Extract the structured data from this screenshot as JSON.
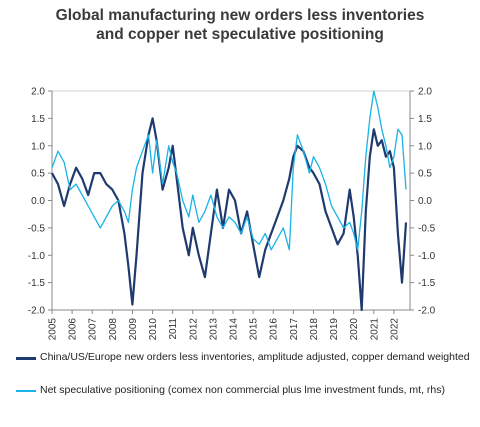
{
  "title_line1": "Global manufacturing new orders less inventories",
  "title_line2": "and copper net speculative positioning",
  "chart_data": {
    "type": "line",
    "title": "Global manufacturing new orders less inventories and copper net speculative positioning",
    "x_tick_labels": [
      "2005",
      "2006",
      "2007",
      "2008",
      "2009",
      "2010",
      "2011",
      "2012",
      "2013",
      "2014",
      "2015",
      "2016",
      "2017",
      "2018",
      "2019",
      "2020",
      "2021",
      "2022"
    ],
    "xlim": [
      2005,
      2022.8
    ],
    "left_axis": {
      "ylim": [
        -2.0,
        2.0
      ],
      "ticks": [
        "2.0",
        "1.5",
        "1.0",
        "0.5",
        "0.0",
        "-0.5",
        "-1.0",
        "-1.5",
        "-2.0"
      ]
    },
    "right_axis": {
      "ylim": [
        -2.0,
        2.0
      ],
      "ticks": [
        "2.0",
        "1.5",
        "1.0",
        "0.5",
        "0.0",
        "-0.5",
        "-1.0",
        "-1.5",
        "-2.0"
      ]
    },
    "grid": false,
    "legend_placement": "bottom",
    "series": [
      {
        "name": "China/US/Europe new orders less inventories, amplitude adjusted, copper demand weighted",
        "color": "#1f3a6e",
        "axis": "left",
        "x": [
          2005.0,
          2005.3,
          2005.6,
          2005.9,
          2006.2,
          2006.5,
          2006.8,
          2007.1,
          2007.4,
          2007.7,
          2008.0,
          2008.3,
          2008.6,
          2008.8,
          2009.0,
          2009.2,
          2009.5,
          2009.8,
          2010.0,
          2010.2,
          2010.5,
          2010.8,
          2011.0,
          2011.2,
          2011.5,
          2011.8,
          2012.0,
          2012.3,
          2012.6,
          2012.9,
          2013.2,
          2013.5,
          2013.8,
          2014.1,
          2014.4,
          2014.7,
          2015.0,
          2015.3,
          2015.6,
          2015.9,
          2016.2,
          2016.5,
          2016.8,
          2017.0,
          2017.2,
          2017.5,
          2017.8,
          2018.0,
          2018.3,
          2018.6,
          2018.9,
          2019.2,
          2019.5,
          2019.8,
          2020.0,
          2020.2,
          2020.4,
          2020.6,
          2020.8,
          2021.0,
          2021.2,
          2021.4,
          2021.6,
          2021.8,
          2022.0,
          2022.2,
          2022.4,
          2022.6
        ],
        "y": [
          0.5,
          0.3,
          -0.1,
          0.3,
          0.6,
          0.4,
          0.1,
          0.5,
          0.5,
          0.3,
          0.2,
          0.0,
          -0.6,
          -1.2,
          -1.9,
          -1.0,
          0.5,
          1.2,
          1.5,
          1.1,
          0.2,
          0.6,
          1.0,
          0.4,
          -0.5,
          -1.0,
          -0.5,
          -1.0,
          -1.4,
          -0.6,
          0.2,
          -0.5,
          0.2,
          0.0,
          -0.6,
          -0.2,
          -0.8,
          -1.4,
          -0.9,
          -0.6,
          -0.3,
          0.0,
          0.4,
          0.8,
          1.0,
          0.9,
          0.6,
          0.5,
          0.3,
          -0.2,
          -0.5,
          -0.8,
          -0.6,
          0.2,
          -0.3,
          -1.0,
          -2.0,
          -0.2,
          0.8,
          1.3,
          1.0,
          1.1,
          0.8,
          0.9,
          0.6,
          -0.6,
          -1.5,
          -0.4
        ]
      },
      {
        "name": "Net speculative positioning (comex non commercial plus lme investment funds, mt, rhs)",
        "color": "#19b3e6",
        "axis": "right",
        "x": [
          2005.0,
          2005.3,
          2005.6,
          2005.9,
          2006.2,
          2006.5,
          2006.8,
          2007.1,
          2007.4,
          2007.7,
          2008.0,
          2008.3,
          2008.6,
          2008.8,
          2009.0,
          2009.2,
          2009.5,
          2009.8,
          2010.0,
          2010.2,
          2010.5,
          2010.8,
          2011.0,
          2011.2,
          2011.5,
          2011.8,
          2012.0,
          2012.3,
          2012.6,
          2012.9,
          2013.2,
          2013.5,
          2013.8,
          2014.1,
          2014.4,
          2014.7,
          2015.0,
          2015.3,
          2015.6,
          2015.9,
          2016.2,
          2016.5,
          2016.8,
          2017.0,
          2017.2,
          2017.5,
          2017.8,
          2018.0,
          2018.3,
          2018.6,
          2018.9,
          2019.2,
          2019.5,
          2019.8,
          2020.0,
          2020.2,
          2020.4,
          2020.6,
          2020.8,
          2021.0,
          2021.2,
          2021.4,
          2021.6,
          2021.8,
          2022.0,
          2022.2,
          2022.4,
          2022.6
        ],
        "y": [
          0.6,
          0.9,
          0.7,
          0.2,
          0.3,
          0.1,
          -0.1,
          -0.3,
          -0.5,
          -0.3,
          -0.1,
          0.0,
          -0.2,
          -0.4,
          0.2,
          0.6,
          0.9,
          1.2,
          0.5,
          1.1,
          0.3,
          1.0,
          0.7,
          0.5,
          0.0,
          -0.3,
          0.1,
          -0.4,
          -0.2,
          0.1,
          -0.3,
          -0.5,
          -0.3,
          -0.4,
          -0.6,
          -0.3,
          -0.7,
          -0.8,
          -0.6,
          -0.9,
          -0.7,
          -0.5,
          -0.9,
          0.6,
          1.2,
          0.9,
          0.5,
          0.8,
          0.6,
          0.3,
          -0.1,
          -0.3,
          -0.5,
          -0.4,
          -0.6,
          -0.9,
          -0.2,
          0.8,
          1.5,
          2.0,
          1.7,
          1.3,
          1.0,
          0.6,
          0.8,
          1.3,
          1.2,
          0.2
        ]
      }
    ]
  },
  "legend": [
    {
      "label": "China/US/Europe new orders less inventories, amplitude adjusted, copper demand weighted",
      "color": "#1f3a6e"
    },
    {
      "label": "Net speculative positioning (comex non commercial plus lme investment funds, mt, rhs)",
      "color": "#19b3e6"
    }
  ]
}
